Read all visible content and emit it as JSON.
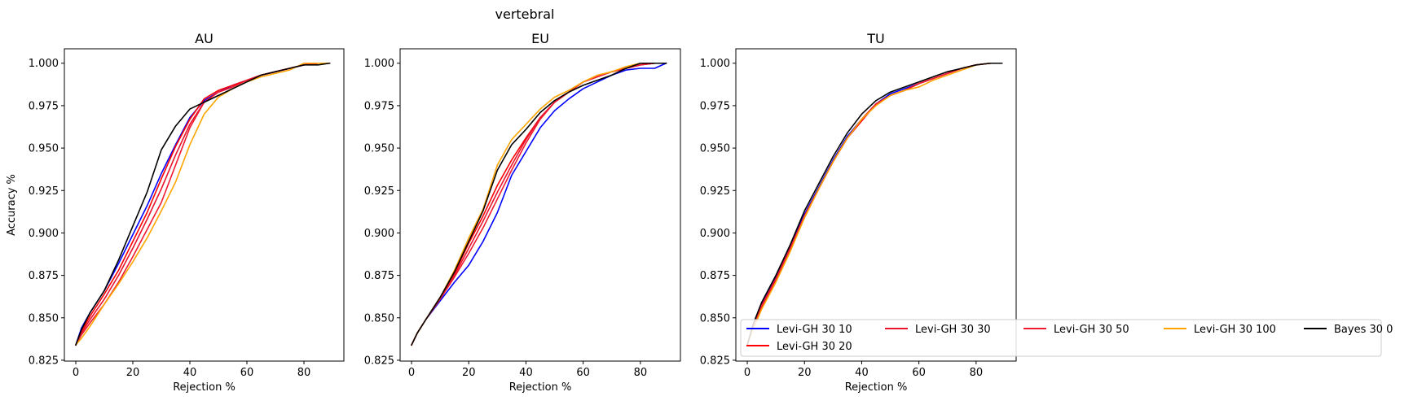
{
  "figure": {
    "title": "vertebral"
  },
  "colors": {
    "levi_10": "#0000ff",
    "levi_20": "#ff0000",
    "levi_30": "#e8132d",
    "levi_50": "#f01a30",
    "levi_100": "#ffa500",
    "bayes": "#000000"
  },
  "legend": {
    "placement": "lower-right (spanning beyond TU panel)",
    "entries": [
      "Levi-GH 30 10",
      "Levi-GH 30 20",
      "Levi-GH 30 30",
      "Levi-GH 30 50",
      "Levi-GH 30 100",
      "Bayes 30 0"
    ]
  },
  "chart_data": [
    {
      "type": "line",
      "title": "AU",
      "xlabel": "Rejection %",
      "ylabel": "Accuracy %",
      "xlim": [
        -4,
        94
      ],
      "ylim": [
        0.8245,
        1.0085
      ],
      "xticks": [
        0,
        20,
        40,
        60,
        80
      ],
      "yticks": [
        0.825,
        0.85,
        0.875,
        0.9,
        0.925,
        0.95,
        0.975,
        1.0
      ],
      "ytick_labels": [
        "0.825",
        "0.850",
        "0.875",
        "0.900",
        "0.925",
        "0.950",
        "0.975",
        "1.000"
      ],
      "grid": false,
      "series": [
        {
          "name": "Levi-GH 30 10",
          "color": "#0000ff",
          "x": [
            0,
            2,
            5,
            10,
            15,
            20,
            25,
            30,
            35,
            40,
            45,
            50,
            55,
            60,
            65,
            70,
            75,
            80,
            85,
            89
          ],
          "y": [
            0.834,
            0.844,
            0.853,
            0.866,
            0.882,
            0.899,
            0.916,
            0.935,
            0.952,
            0.968,
            0.978,
            0.983,
            0.987,
            0.99,
            0.993,
            0.995,
            0.997,
            0.999,
            1.0,
            1.0
          ]
        },
        {
          "name": "Levi-GH 30 20",
          "color": "#ff0000",
          "x": [
            0,
            2,
            5,
            10,
            15,
            20,
            25,
            30,
            35,
            40,
            45,
            50,
            55,
            60,
            65,
            70,
            75,
            80,
            85,
            89
          ],
          "y": [
            0.834,
            0.842,
            0.851,
            0.864,
            0.878,
            0.895,
            0.912,
            0.932,
            0.951,
            0.967,
            0.979,
            0.984,
            0.987,
            0.99,
            0.993,
            0.995,
            0.997,
            0.999,
            1.0,
            1.0
          ]
        },
        {
          "name": "Levi-GH 30 30",
          "color": "#e8132d",
          "x": [
            0,
            2,
            5,
            10,
            15,
            20,
            25,
            30,
            35,
            40,
            45,
            50,
            55,
            60,
            65,
            70,
            75,
            80,
            85,
            89
          ],
          "y": [
            0.834,
            0.841,
            0.849,
            0.861,
            0.875,
            0.891,
            0.908,
            0.926,
            0.946,
            0.964,
            0.977,
            0.983,
            0.986,
            0.99,
            0.993,
            0.995,
            0.997,
            0.999,
            1.0,
            1.0
          ]
        },
        {
          "name": "Levi-GH 30 50",
          "color": "#f01a30",
          "x": [
            0,
            2,
            5,
            10,
            15,
            20,
            25,
            30,
            35,
            40,
            45,
            50,
            55,
            60,
            65,
            70,
            75,
            80,
            85,
            89
          ],
          "y": [
            0.834,
            0.84,
            0.847,
            0.858,
            0.871,
            0.886,
            0.902,
            0.918,
            0.94,
            0.962,
            0.977,
            0.983,
            0.986,
            0.99,
            0.993,
            0.995,
            0.997,
            0.999,
            1.0,
            1.0
          ]
        },
        {
          "name": "Levi-GH 30 100",
          "color": "#ffa500",
          "x": [
            0,
            2,
            5,
            10,
            15,
            20,
            25,
            30,
            35,
            40,
            45,
            50,
            55,
            60,
            65,
            70,
            75,
            80,
            85,
            89
          ],
          "y": [
            0.834,
            0.838,
            0.845,
            0.858,
            0.87,
            0.883,
            0.897,
            0.913,
            0.93,
            0.952,
            0.97,
            0.98,
            0.985,
            0.989,
            0.992,
            0.994,
            0.996,
            1.0,
            1.0,
            1.0
          ]
        },
        {
          "name": "Bayes 30 0",
          "color": "#000000",
          "x": [
            0,
            2,
            5,
            10,
            15,
            20,
            25,
            30,
            35,
            40,
            45,
            50,
            55,
            60,
            65,
            70,
            75,
            80,
            85,
            89
          ],
          "y": [
            0.834,
            0.843,
            0.853,
            0.866,
            0.884,
            0.904,
            0.924,
            0.949,
            0.963,
            0.973,
            0.977,
            0.981,
            0.985,
            0.989,
            0.993,
            0.995,
            0.997,
            0.999,
            0.999,
            1.0
          ]
        }
      ]
    },
    {
      "type": "line",
      "title": "EU",
      "xlabel": "Rejection %",
      "ylabel": "",
      "xlim": [
        -4,
        94
      ],
      "ylim": [
        0.8245,
        1.0085
      ],
      "xticks": [
        0,
        20,
        40,
        60,
        80
      ],
      "yticks": [
        0.825,
        0.85,
        0.875,
        0.9,
        0.925,
        0.95,
        0.975,
        1.0
      ],
      "ytick_labels": [
        "0.825",
        "0.850",
        "0.875",
        "0.900",
        "0.925",
        "0.950",
        "0.975",
        "1.000"
      ],
      "grid": false,
      "series": [
        {
          "name": "Levi-GH 30 10",
          "color": "#0000ff",
          "x": [
            0,
            2,
            5,
            10,
            15,
            20,
            25,
            30,
            35,
            40,
            45,
            50,
            55,
            60,
            65,
            70,
            75,
            80,
            85,
            89
          ],
          "y": [
            0.834,
            0.841,
            0.849,
            0.86,
            0.871,
            0.881,
            0.895,
            0.912,
            0.934,
            0.948,
            0.962,
            0.972,
            0.979,
            0.985,
            0.989,
            0.993,
            0.996,
            0.997,
            0.997,
            1.0
          ]
        },
        {
          "name": "Levi-GH 30 20",
          "color": "#ff0000",
          "x": [
            0,
            2,
            5,
            10,
            15,
            20,
            25,
            30,
            35,
            40,
            45,
            50,
            55,
            60,
            65,
            70,
            75,
            80,
            85,
            89
          ],
          "y": [
            0.834,
            0.841,
            0.849,
            0.862,
            0.876,
            0.894,
            0.91,
            0.928,
            0.943,
            0.956,
            0.968,
            0.977,
            0.983,
            0.989,
            0.992,
            0.995,
            0.997,
            0.999,
            1.0,
            1.0
          ]
        },
        {
          "name": "Levi-GH 30 30",
          "color": "#e8132d",
          "x": [
            0,
            2,
            5,
            10,
            15,
            20,
            25,
            30,
            35,
            40,
            45,
            50,
            55,
            60,
            65,
            70,
            75,
            80,
            85,
            89
          ],
          "y": [
            0.834,
            0.841,
            0.849,
            0.862,
            0.875,
            0.891,
            0.907,
            0.924,
            0.94,
            0.955,
            0.968,
            0.977,
            0.983,
            0.989,
            0.992,
            0.995,
            0.997,
            0.999,
            1.0,
            1.0
          ]
        },
        {
          "name": "Levi-GH 30 50",
          "color": "#f01a30",
          "x": [
            0,
            2,
            5,
            10,
            15,
            20,
            25,
            30,
            35,
            40,
            45,
            50,
            55,
            60,
            65,
            70,
            75,
            80,
            85,
            89
          ],
          "y": [
            0.834,
            0.841,
            0.849,
            0.861,
            0.874,
            0.888,
            0.903,
            0.92,
            0.937,
            0.953,
            0.967,
            0.977,
            0.983,
            0.989,
            0.992,
            0.995,
            0.997,
            0.999,
            1.0,
            1.0
          ]
        },
        {
          "name": "Levi-GH 30 100",
          "color": "#ffa500",
          "x": [
            0,
            2,
            5,
            10,
            15,
            20,
            25,
            30,
            35,
            40,
            45,
            50,
            55,
            60,
            65,
            70,
            75,
            80,
            85,
            89
          ],
          "y": [
            0.834,
            0.841,
            0.849,
            0.862,
            0.878,
            0.897,
            0.914,
            0.94,
            0.955,
            0.964,
            0.973,
            0.98,
            0.984,
            0.989,
            0.993,
            0.995,
            0.998,
            1.0,
            1.0,
            1.0
          ]
        },
        {
          "name": "Bayes 30 0",
          "color": "#000000",
          "x": [
            0,
            2,
            5,
            10,
            15,
            20,
            25,
            30,
            35,
            40,
            45,
            50,
            55,
            60,
            65,
            70,
            75,
            80,
            85,
            89
          ],
          "y": [
            0.834,
            0.841,
            0.849,
            0.862,
            0.877,
            0.895,
            0.913,
            0.937,
            0.952,
            0.961,
            0.971,
            0.978,
            0.983,
            0.987,
            0.99,
            0.993,
            0.997,
            1.0,
            1.0,
            1.0
          ]
        }
      ]
    },
    {
      "type": "line",
      "title": "TU",
      "xlabel": "Rejection %",
      "ylabel": "",
      "xlim": [
        -4,
        94
      ],
      "ylim": [
        0.8245,
        1.0085
      ],
      "xticks": [
        0,
        20,
        40,
        60,
        80
      ],
      "yticks": [
        0.825,
        0.85,
        0.875,
        0.9,
        0.925,
        0.95,
        0.975,
        1.0
      ],
      "ytick_labels": [
        "0.825",
        "0.850",
        "0.875",
        "0.900",
        "0.925",
        "0.950",
        "0.975",
        "1.000"
      ],
      "grid": false,
      "series": [
        {
          "name": "Levi-GH 30 10",
          "color": "#0000ff",
          "x": [
            0,
            2,
            5,
            10,
            15,
            20,
            25,
            30,
            35,
            40,
            45,
            50,
            55,
            60,
            65,
            70,
            75,
            80,
            85,
            89
          ],
          "y": [
            0.834,
            0.845,
            0.858,
            0.874,
            0.892,
            0.911,
            0.927,
            0.943,
            0.957,
            0.967,
            0.976,
            0.982,
            0.985,
            0.988,
            0.991,
            0.994,
            0.997,
            0.999,
            1.0,
            1.0
          ]
        },
        {
          "name": "Levi-GH 30 20",
          "color": "#ff0000",
          "x": [
            0,
            2,
            5,
            10,
            15,
            20,
            25,
            30,
            35,
            40,
            45,
            50,
            55,
            60,
            65,
            70,
            75,
            80,
            85,
            89
          ],
          "y": [
            0.834,
            0.844,
            0.856,
            0.872,
            0.89,
            0.909,
            0.926,
            0.942,
            0.956,
            0.966,
            0.976,
            0.981,
            0.984,
            0.988,
            0.991,
            0.994,
            0.997,
            0.999,
            1.0,
            1.0
          ]
        },
        {
          "name": "Levi-GH 30 30",
          "color": "#e8132d",
          "x": [
            0,
            2,
            5,
            10,
            15,
            20,
            25,
            30,
            35,
            40,
            45,
            50,
            55,
            60,
            65,
            70,
            75,
            80,
            85,
            89
          ],
          "y": [
            0.834,
            0.845,
            0.857,
            0.873,
            0.891,
            0.91,
            0.926,
            0.942,
            0.956,
            0.967,
            0.976,
            0.981,
            0.984,
            0.988,
            0.991,
            0.994,
            0.997,
            0.999,
            1.0,
            1.0
          ]
        },
        {
          "name": "Levi-GH 30 50",
          "color": "#f01a30",
          "x": [
            0,
            2,
            5,
            10,
            15,
            20,
            25,
            30,
            35,
            40,
            45,
            50,
            55,
            60,
            65,
            70,
            75,
            80,
            85,
            89
          ],
          "y": [
            0.834,
            0.845,
            0.857,
            0.873,
            0.891,
            0.91,
            0.926,
            0.942,
            0.956,
            0.967,
            0.976,
            0.981,
            0.984,
            0.988,
            0.991,
            0.994,
            0.997,
            0.999,
            1.0,
            1.0
          ]
        },
        {
          "name": "Levi-GH 30 100",
          "color": "#ffa500",
          "x": [
            0,
            2,
            5,
            10,
            15,
            20,
            25,
            30,
            35,
            40,
            45,
            50,
            55,
            60,
            65,
            70,
            75,
            80,
            85,
            89
          ],
          "y": [
            0.834,
            0.843,
            0.855,
            0.871,
            0.889,
            0.909,
            0.926,
            0.942,
            0.956,
            0.967,
            0.975,
            0.981,
            0.984,
            0.986,
            0.99,
            0.993,
            0.996,
            0.999,
            1.0,
            1.0
          ]
        },
        {
          "name": "Bayes 30 0",
          "color": "#000000",
          "x": [
            0,
            2,
            5,
            10,
            15,
            20,
            25,
            30,
            35,
            40,
            45,
            50,
            55,
            60,
            65,
            70,
            75,
            80,
            85,
            89
          ],
          "y": [
            0.834,
            0.846,
            0.859,
            0.875,
            0.893,
            0.913,
            0.929,
            0.945,
            0.959,
            0.97,
            0.978,
            0.983,
            0.986,
            0.989,
            0.992,
            0.995,
            0.997,
            0.999,
            1.0,
            1.0
          ]
        }
      ]
    }
  ]
}
